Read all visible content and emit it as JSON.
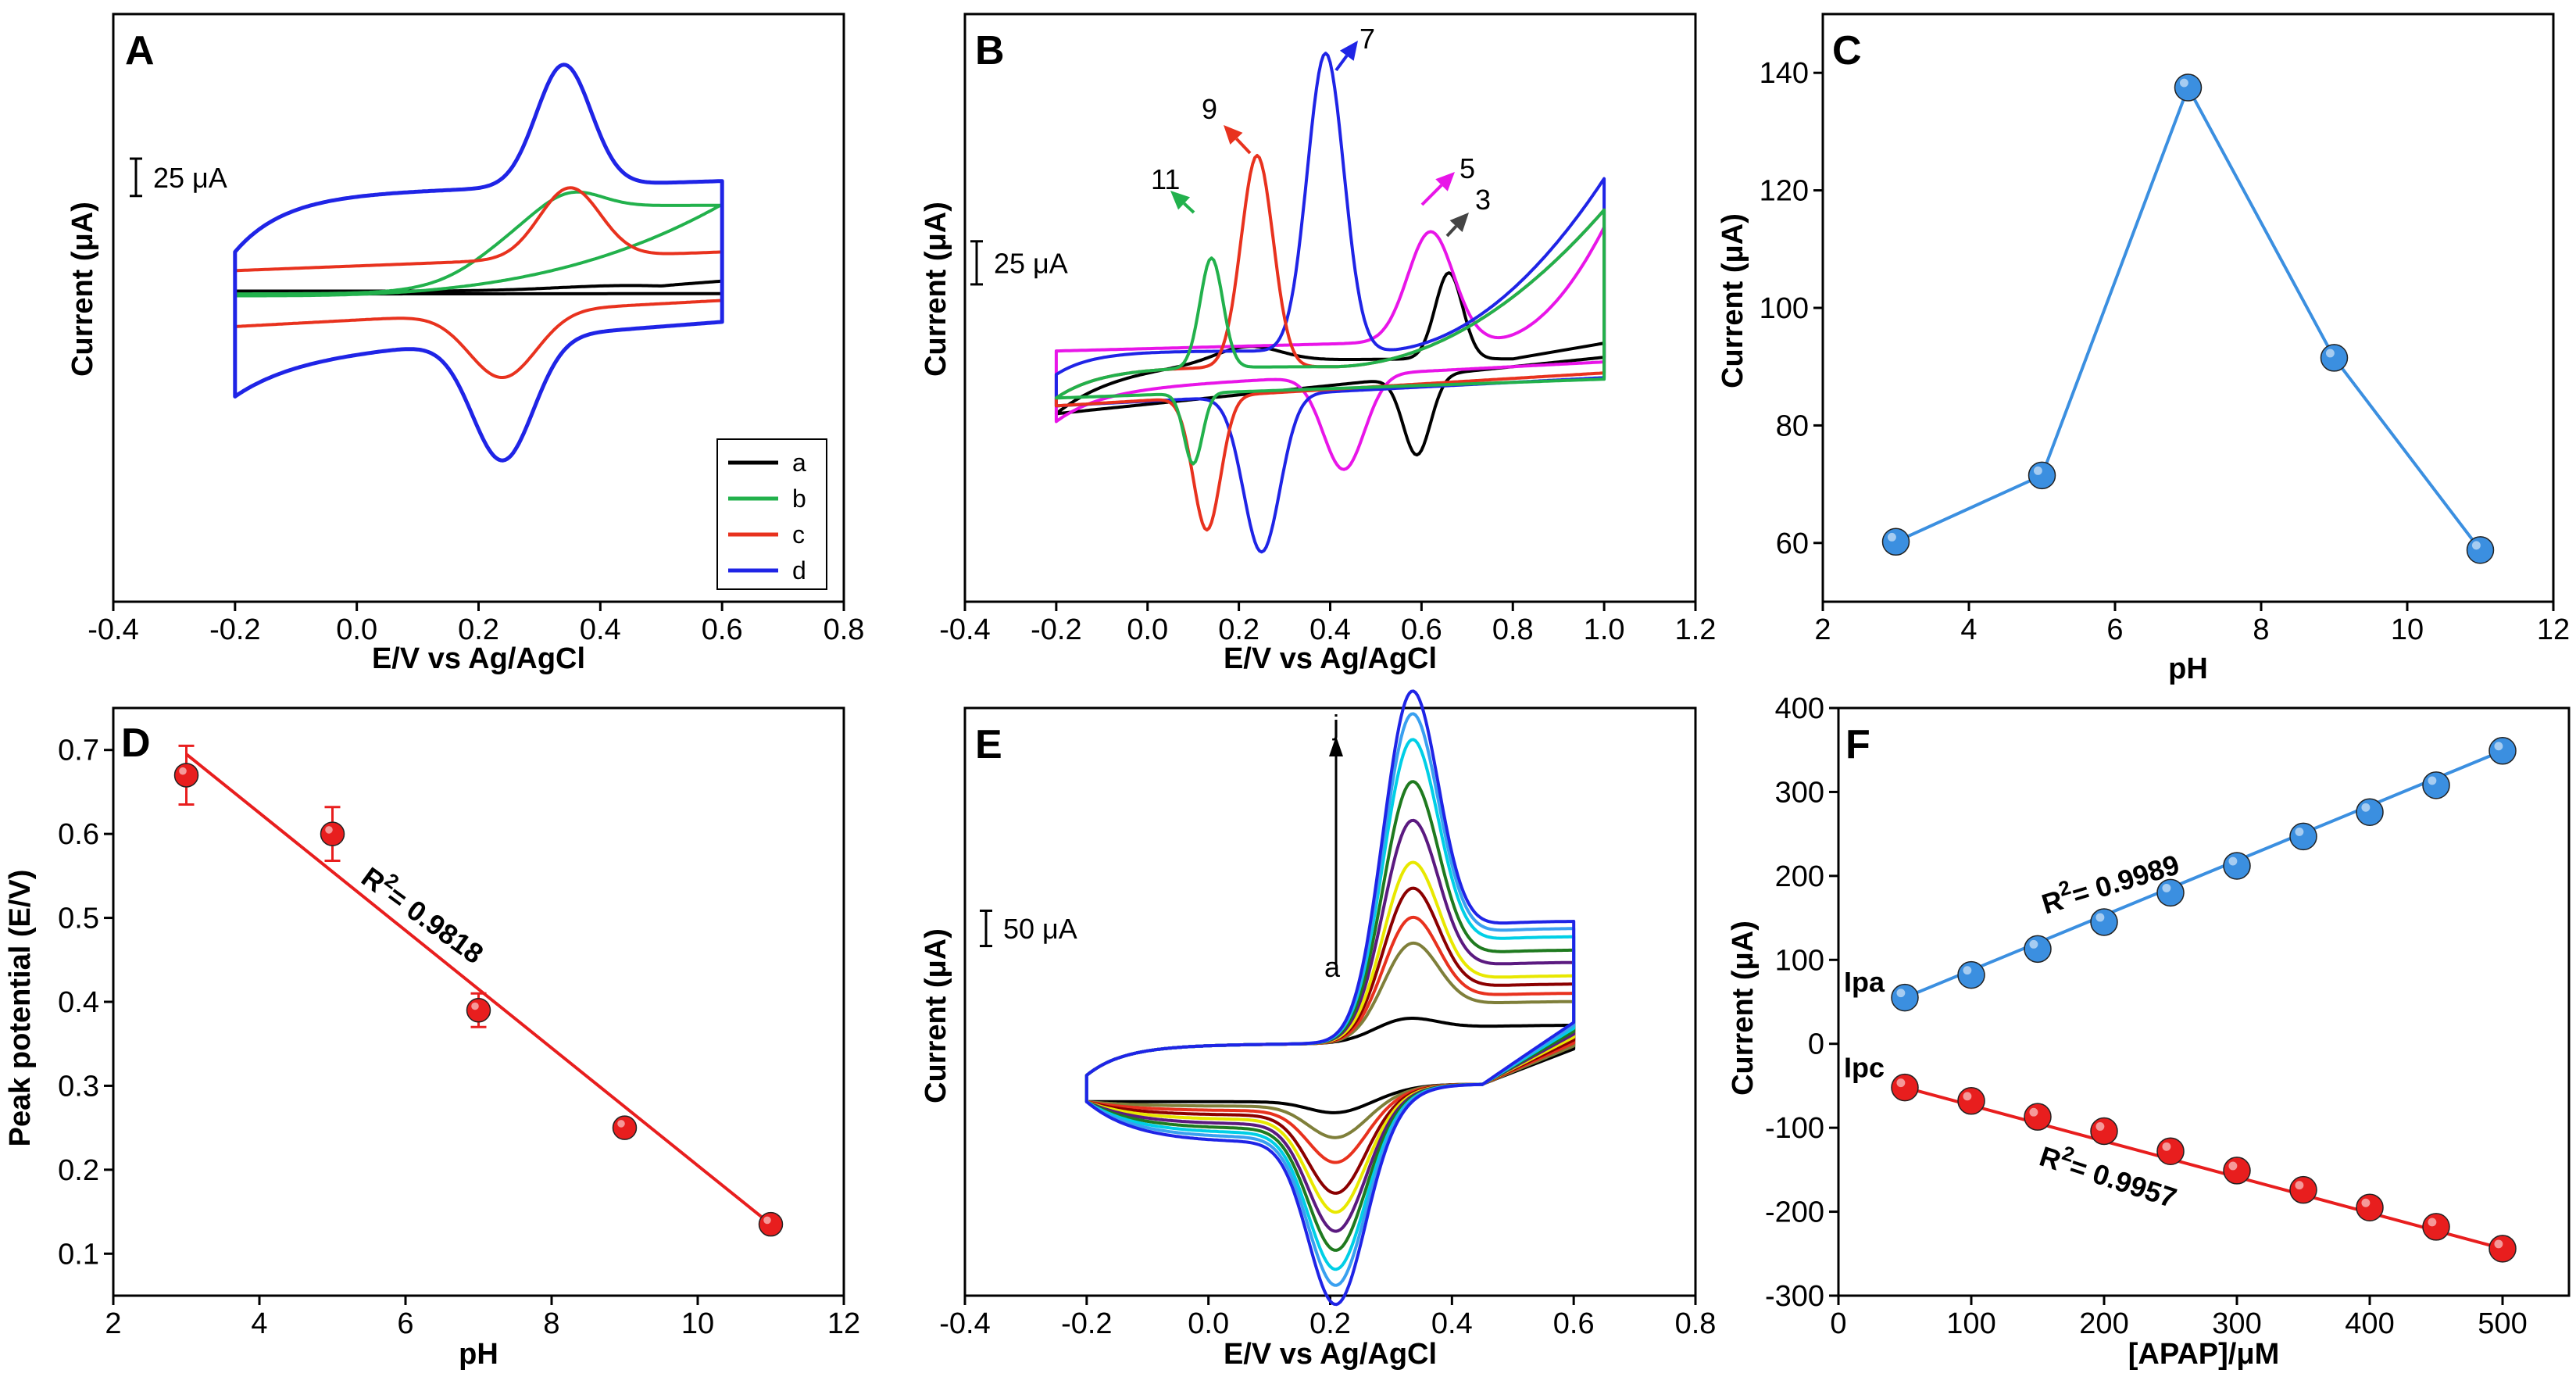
{
  "chart_data": [
    {
      "panel": "A",
      "type": "line",
      "xlabel": "E/V vs Ag/AgCl",
      "ylabel": "Current (μA)",
      "xlim": [
        -0.4,
        0.8
      ],
      "xticks": [
        "-0.4",
        "-0.2",
        "0.0",
        "0.2",
        "0.4",
        "0.6",
        "0.8"
      ],
      "scale_bar": "25 μA",
      "legend": [
        "a",
        "b",
        "c",
        "d"
      ],
      "colors": [
        "#000000",
        "#22b14c",
        "#e8321e",
        "#1f24e6"
      ],
      "series": [
        {
          "name": "a",
          "upper": [
            [
              -0.2,
              0.3
            ],
            [
              0.2,
              0.32
            ],
            [
              0.5,
              0.5
            ],
            [
              0.6,
              1.0
            ]
          ],
          "lower": [
            [
              -0.2,
              0.0
            ],
            [
              0.6,
              0.15
            ]
          ]
        },
        {
          "name": "b",
          "upper": [
            [
              -0.2,
              0.0
            ],
            [
              0.2,
              5
            ],
            [
              0.35,
              8.6
            ],
            [
              0.6,
              9.5
            ]
          ],
          "lower": [
            [
              -0.2,
              -0.2
            ],
            [
              0.3,
              2
            ],
            [
              0.6,
              9.5
            ]
          ]
        },
        {
          "name": "c",
          "upper": [
            [
              -0.2,
              2.5
            ],
            [
              0.1,
              3.2
            ],
            [
              0.25,
              5
            ],
            [
              0.35,
              10.5
            ],
            [
              0.45,
              4.2
            ],
            [
              0.6,
              4.8
            ]
          ],
          "lower": [
            [
              -0.2,
              -3.5
            ],
            [
              0.1,
              -1.8
            ],
            [
              0.24,
              -8.5
            ],
            [
              0.4,
              -1.5
            ],
            [
              0.6,
              -0.5
            ]
          ]
        },
        {
          "name": "d",
          "upper": [
            [
              -0.2,
              4.5
            ],
            [
              0.1,
              10
            ],
            [
              0.25,
              13
            ],
            [
              0.34,
              25
            ],
            [
              0.42,
              12.5
            ],
            [
              0.6,
              13
            ]
          ],
          "lower": [
            [
              -0.2,
              -11
            ],
            [
              0.1,
              -8
            ],
            [
              0.24,
              -20.5
            ],
            [
              0.4,
              -7
            ],
            [
              0.6,
              -4
            ]
          ]
        }
      ]
    },
    {
      "panel": "B",
      "type": "line",
      "xlabel": "E/V vs Ag/AgCl",
      "ylabel": "Current (μA)",
      "xlim": [
        -0.4,
        1.2
      ],
      "xticks": [
        "-0.4",
        "-0.2",
        "0.0",
        "0.2",
        "0.4",
        "0.6",
        "0.8",
        "1.0",
        "1.2"
      ],
      "scale_bar": "25 μA",
      "annotations": [
        "3",
        "5",
        "7",
        "9",
        "11"
      ],
      "series": [
        {
          "name": "3",
          "color": "#000000",
          "peak_anodic": [
            0.66,
            13.5
          ],
          "peak_cathodic": [
            0.58,
            -10
          ]
        },
        {
          "name": "5",
          "color": "#e815e8",
          "peak_anodic": [
            0.62,
            17.5
          ],
          "peak_cathodic": [
            0.43,
            -16.5
          ]
        },
        {
          "name": "7",
          "color": "#1f24e6",
          "peak_anodic": [
            0.39,
            40.5
          ],
          "peak_cathodic": [
            0.25,
            -24.5
          ]
        },
        {
          "name": "9",
          "color": "#e8321e",
          "peak_anodic": [
            0.24,
            28
          ],
          "peak_cathodic": [
            0.13,
            -21
          ]
        },
        {
          "name": "11",
          "color": "#22b14c",
          "peak_anodic": [
            0.14,
            14.5
          ],
          "peak_cathodic": [
            0.1,
            -12
          ]
        }
      ]
    },
    {
      "panel": "C",
      "type": "line",
      "xlabel": "pH",
      "ylabel": "Current (μA)",
      "xlim": [
        2,
        12
      ],
      "ylim": [
        50,
        150
      ],
      "xticks": [
        "2",
        "4",
        "6",
        "8",
        "10",
        "12"
      ],
      "yticks": [
        "60",
        "80",
        "100",
        "120",
        "140"
      ],
      "x": [
        3,
        5,
        7,
        9,
        11
      ],
      "values": [
        60.2,
        71.5,
        137.5,
        91.5,
        58.8
      ],
      "color": "#3b8fe0"
    },
    {
      "panel": "D",
      "type": "scatter",
      "xlabel": "pH",
      "ylabel": "Peak potential (E/V)",
      "xlim": [
        2,
        12
      ],
      "ylim": [
        0.05,
        0.75
      ],
      "xticks": [
        "2",
        "4",
        "6",
        "8",
        "10",
        "12"
      ],
      "yticks": [
        "0.1",
        "0.2",
        "0.3",
        "0.4",
        "0.5",
        "0.6",
        "0.7"
      ],
      "x": [
        3,
        5,
        7,
        9,
        11
      ],
      "values": [
        0.67,
        0.6,
        0.39,
        0.25,
        0.135
      ],
      "errors": [
        0.035,
        0.032,
        0.02,
        0.01,
        0.008
      ],
      "fit": [
        [
          3,
          0.695
        ],
        [
          11,
          0.135
        ]
      ],
      "r2_prefix": "R",
      "r2_sup": "2",
      "r2_value": "= 0.9818",
      "color": "#e81e1e"
    },
    {
      "panel": "E",
      "type": "line",
      "xlabel": "E/V vs Ag/AgCl",
      "ylabel": "Current (μA)",
      "xlim": [
        -0.4,
        0.8
      ],
      "xticks": [
        "-0.4",
        "-0.2",
        "0.0",
        "0.2",
        "0.4",
        "0.6",
        "0.8"
      ],
      "scale_bar": "50 μA",
      "arrow_start": "a",
      "arrow_end": "j",
      "colors": [
        "#000000",
        "#7f7f3a",
        "#e8321e",
        "#8b0000",
        "#e8e800",
        "#5b1a80",
        "#1f7a1f",
        "#00cfe6",
        "#3aa0f0",
        "#1f24e6"
      ],
      "anodic_peaks": [
        7,
        30,
        38,
        47,
        55,
        68,
        80,
        93,
        101,
        108
      ],
      "cathodic_peaks": [
        -4,
        -11,
        -18,
        -27,
        -32,
        -37,
        -42,
        -47,
        -51,
        -56
      ]
    },
    {
      "panel": "F",
      "type": "scatter",
      "xlabel": "[APAP]/μM",
      "ylabel": "Current (μA)",
      "xlim": [
        0,
        550
      ],
      "ylim": [
        -300,
        400
      ],
      "xticks": [
        "0",
        "100",
        "200",
        "300",
        "400",
        "500"
      ],
      "yticks": [
        "-300",
        "-200",
        "-100",
        "0",
        "100",
        "200",
        "300",
        "400"
      ],
      "x": [
        50,
        100,
        150,
        200,
        250,
        300,
        350,
        400,
        450,
        500
      ],
      "series": [
        {
          "name": "Ipa",
          "values": [
            55,
            82,
            113,
            145,
            180,
            212,
            247,
            276,
            308,
            349
          ],
          "color": "#3b8fe0",
          "r2_prefix": "R",
          "r2_sup": "2",
          "r2_value": "= 0.9989"
        },
        {
          "name": "Ipc",
          "values": [
            -52,
            -68,
            -87,
            -104,
            -128,
            -151,
            -174,
            -195,
            -218,
            -244
          ],
          "color": "#e81e1e",
          "r2_prefix": "R",
          "r2_sup": "2",
          "r2_value": "= 0.9957"
        }
      ]
    }
  ]
}
